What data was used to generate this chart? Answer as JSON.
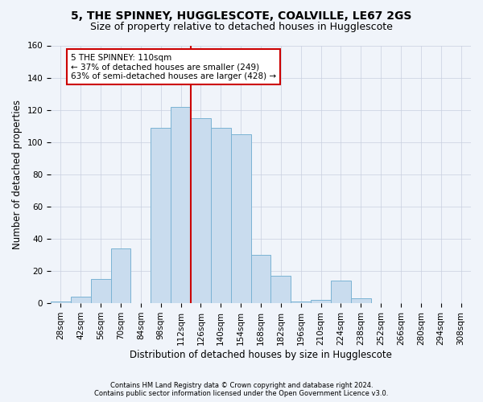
{
  "title": "5, THE SPINNEY, HUGGLESCOTE, COALVILLE, LE67 2GS",
  "subtitle": "Size of property relative to detached houses in Hugglescote",
  "xlabel": "Distribution of detached houses by size in Hugglescote",
  "ylabel": "Number of detached properties",
  "footnote1": "Contains HM Land Registry data © Crown copyright and database right 2024.",
  "footnote2": "Contains public sector information licensed under the Open Government Licence v3.0.",
  "bin_labels": [
    "28sqm",
    "42sqm",
    "56sqm",
    "70sqm",
    "84sqm",
    "98sqm",
    "112sqm",
    "126sqm",
    "140sqm",
    "154sqm",
    "168sqm",
    "182sqm",
    "196sqm",
    "210sqm",
    "224sqm",
    "238sqm",
    "252sqm",
    "266sqm",
    "280sqm",
    "294sqm",
    "308sqm"
  ],
  "bar_values": [
    1,
    4,
    15,
    34,
    0,
    109,
    122,
    115,
    109,
    105,
    30,
    17,
    1,
    2,
    14,
    3,
    0,
    0,
    0,
    0,
    0
  ],
  "bar_color": "#c9dcee",
  "bar_edgecolor": "#7ab3d4",
  "vline_index": 6.5,
  "annotation_text": "5 THE SPINNEY: 110sqm\n← 37% of detached houses are smaller (249)\n63% of semi-detached houses are larger (428) →",
  "annotation_box_edgecolor": "#cc0000",
  "vline_color": "#cc0000",
  "ylim": [
    0,
    160
  ],
  "yticks": [
    0,
    20,
    40,
    60,
    80,
    100,
    120,
    140,
    160
  ],
  "bg_color": "#f0f4fa",
  "grid_color": "#c8cfe0",
  "title_fontsize": 10,
  "subtitle_fontsize": 9,
  "ylabel_fontsize": 8.5,
  "xlabel_fontsize": 8.5,
  "tick_fontsize": 7.5,
  "annot_fontsize": 7.5
}
